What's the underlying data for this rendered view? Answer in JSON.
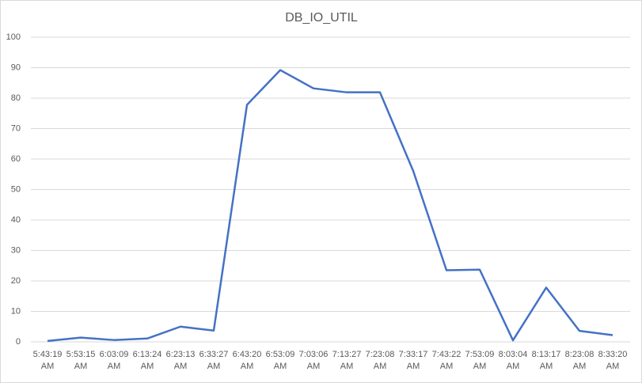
{
  "chart_data": {
    "type": "line",
    "title": "DB_IO_UTIL",
    "categories": [
      "5:43:19 AM",
      "5:53:15 AM",
      "6:03:09 AM",
      "6:13:24 AM",
      "6:23:13 AM",
      "6:33:27 AM",
      "6:43:20 AM",
      "6:53:09 AM",
      "7:03:06 AM",
      "7:13:27 AM",
      "7:23:08 AM",
      "7:33:17 AM",
      "7:43:22 AM",
      "7:53:09 AM",
      "8:03:04 AM",
      "8:13:17 AM",
      "8:23:08 AM",
      "8:33:20 AM"
    ],
    "values": [
      0.3,
      1.4,
      0.6,
      1.1,
      5.0,
      3.7,
      77.8,
      89.2,
      83.2,
      81.9,
      81.9,
      56.1,
      23.5,
      23.7,
      0.5,
      17.8,
      3.6,
      2.2
    ],
    "color": "#4472c4",
    "ylim": [
      0,
      100
    ],
    "yticks": [
      0,
      10,
      20,
      30,
      40,
      50,
      60,
      70,
      80,
      90,
      100
    ],
    "grid": true
  }
}
